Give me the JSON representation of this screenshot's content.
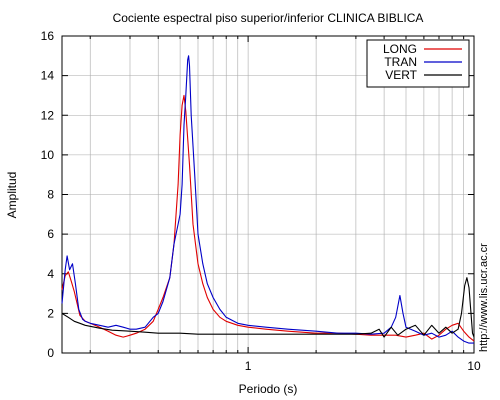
{
  "chart_data": {
    "type": "line",
    "title": "Cociente espectral piso superior/inferior  CLINICA BIBLICA",
    "xlabel": "Periodo (s)",
    "ylabel": "Amplitud",
    "xscale": "log",
    "xlim": [
      0.15,
      10
    ],
    "ylim": [
      0,
      16
    ],
    "x_tick_labels": [
      {
        "value": 1,
        "label": "1"
      },
      {
        "value": 10,
        "label": "10"
      }
    ],
    "y_ticks": [
      0,
      2,
      4,
      6,
      8,
      10,
      12,
      14,
      16
    ],
    "grid": true,
    "legend": "top-right",
    "watermark": "http://www.lis.ucr.ac.cr",
    "series": [
      {
        "name": "LONG",
        "color": "#e00000",
        "points": [
          [
            0.15,
            3.2
          ],
          [
            0.155,
            3.9
          ],
          [
            0.16,
            4.1
          ],
          [
            0.165,
            3.6
          ],
          [
            0.17,
            3.1
          ],
          [
            0.175,
            2.5
          ],
          [
            0.18,
            1.9
          ],
          [
            0.19,
            1.6
          ],
          [
            0.2,
            1.5
          ],
          [
            0.21,
            1.4
          ],
          [
            0.22,
            1.3
          ],
          [
            0.24,
            1.1
          ],
          [
            0.26,
            0.9
          ],
          [
            0.28,
            0.8
          ],
          [
            0.3,
            0.9
          ],
          [
            0.32,
            1.0
          ],
          [
            0.35,
            1.2
          ],
          [
            0.38,
            1.6
          ],
          [
            0.4,
            2.2
          ],
          [
            0.42,
            2.8
          ],
          [
            0.45,
            3.8
          ],
          [
            0.47,
            5.5
          ],
          [
            0.49,
            8.5
          ],
          [
            0.5,
            11.0
          ],
          [
            0.51,
            12.5
          ],
          [
            0.52,
            13.0
          ],
          [
            0.53,
            12.2
          ],
          [
            0.55,
            9.5
          ],
          [
            0.57,
            6.5
          ],
          [
            0.6,
            4.5
          ],
          [
            0.63,
            3.5
          ],
          [
            0.66,
            2.8
          ],
          [
            0.7,
            2.2
          ],
          [
            0.75,
            1.8
          ],
          [
            0.8,
            1.6
          ],
          [
            0.9,
            1.4
          ],
          [
            1.0,
            1.3
          ],
          [
            1.2,
            1.2
          ],
          [
            1.5,
            1.1
          ],
          [
            2.0,
            1.0
          ],
          [
            2.5,
            1.0
          ],
          [
            3.0,
            0.95
          ],
          [
            3.5,
            0.9
          ],
          [
            4.0,
            0.9
          ],
          [
            4.5,
            0.9
          ],
          [
            5.0,
            0.8
          ],
          [
            5.5,
            0.9
          ],
          [
            6.0,
            1.0
          ],
          [
            6.5,
            0.7
          ],
          [
            7.0,
            0.9
          ],
          [
            7.5,
            1.2
          ],
          [
            8.0,
            1.4
          ],
          [
            8.5,
            1.5
          ],
          [
            9.0,
            1.1
          ],
          [
            9.5,
            0.8
          ],
          [
            10.0,
            0.6
          ]
        ]
      },
      {
        "name": "TRAN",
        "color": "#0000c8",
        "points": [
          [
            0.15,
            2.5
          ],
          [
            0.155,
            4.2
          ],
          [
            0.158,
            4.9
          ],
          [
            0.162,
            4.2
          ],
          [
            0.167,
            4.5
          ],
          [
            0.172,
            3.5
          ],
          [
            0.178,
            2.2
          ],
          [
            0.185,
            1.7
          ],
          [
            0.19,
            1.6
          ],
          [
            0.2,
            1.5
          ],
          [
            0.22,
            1.4
          ],
          [
            0.24,
            1.3
          ],
          [
            0.26,
            1.4
          ],
          [
            0.28,
            1.3
          ],
          [
            0.3,
            1.2
          ],
          [
            0.32,
            1.2
          ],
          [
            0.35,
            1.3
          ],
          [
            0.38,
            1.8
          ],
          [
            0.4,
            2.0
          ],
          [
            0.42,
            2.6
          ],
          [
            0.45,
            3.8
          ],
          [
            0.47,
            5.5
          ],
          [
            0.49,
            6.5
          ],
          [
            0.5,
            7.0
          ],
          [
            0.51,
            8.5
          ],
          [
            0.52,
            11.5
          ],
          [
            0.53,
            13.0
          ],
          [
            0.54,
            14.8
          ],
          [
            0.545,
            15.0
          ],
          [
            0.55,
            14.5
          ],
          [
            0.56,
            12.0
          ],
          [
            0.58,
            9.0
          ],
          [
            0.6,
            6.0
          ],
          [
            0.63,
            4.5
          ],
          [
            0.66,
            3.5
          ],
          [
            0.7,
            2.8
          ],
          [
            0.75,
            2.2
          ],
          [
            0.8,
            1.8
          ],
          [
            0.9,
            1.5
          ],
          [
            1.0,
            1.4
          ],
          [
            1.2,
            1.3
          ],
          [
            1.5,
            1.2
          ],
          [
            2.0,
            1.1
          ],
          [
            2.5,
            1.0
          ],
          [
            3.0,
            1.0
          ],
          [
            3.5,
            0.95
          ],
          [
            4.0,
            1.0
          ],
          [
            4.3,
            1.3
          ],
          [
            4.5,
            1.8
          ],
          [
            4.7,
            2.9
          ],
          [
            4.85,
            2.0
          ],
          [
            5.0,
            1.3
          ],
          [
            5.5,
            1.1
          ],
          [
            6.0,
            0.9
          ],
          [
            6.5,
            1.0
          ],
          [
            7.0,
            0.8
          ],
          [
            7.5,
            0.9
          ],
          [
            8.0,
            1.1
          ],
          [
            8.5,
            0.8
          ],
          [
            9.0,
            0.6
          ],
          [
            9.5,
            0.5
          ],
          [
            10.0,
            0.5
          ]
        ]
      },
      {
        "name": "VERT",
        "color": "#000000",
        "points": [
          [
            0.15,
            2.0
          ],
          [
            0.16,
            1.8
          ],
          [
            0.17,
            1.6
          ],
          [
            0.18,
            1.5
          ],
          [
            0.19,
            1.4
          ],
          [
            0.2,
            1.35
          ],
          [
            0.22,
            1.25
          ],
          [
            0.25,
            1.15
          ],
          [
            0.3,
            1.1
          ],
          [
            0.35,
            1.05
          ],
          [
            0.4,
            1.0
          ],
          [
            0.5,
            1.0
          ],
          [
            0.6,
            0.95
          ],
          [
            0.8,
            0.95
          ],
          [
            1.0,
            0.95
          ],
          [
            1.5,
            0.95
          ],
          [
            2.0,
            0.95
          ],
          [
            2.5,
            0.95
          ],
          [
            3.0,
            0.95
          ],
          [
            3.5,
            1.0
          ],
          [
            3.8,
            1.2
          ],
          [
            4.0,
            0.8
          ],
          [
            4.3,
            1.3
          ],
          [
            4.6,
            0.9
          ],
          [
            5.0,
            1.2
          ],
          [
            5.5,
            1.4
          ],
          [
            6.0,
            0.9
          ],
          [
            6.5,
            1.4
          ],
          [
            7.0,
            1.0
          ],
          [
            7.5,
            1.3
          ],
          [
            8.0,
            1.0
          ],
          [
            8.5,
            1.2
          ],
          [
            8.8,
            2.0
          ],
          [
            9.1,
            3.4
          ],
          [
            9.3,
            3.8
          ],
          [
            9.5,
            3.3
          ],
          [
            9.7,
            2.0
          ],
          [
            9.85,
            1.0
          ],
          [
            10.0,
            0.8
          ]
        ]
      }
    ]
  }
}
